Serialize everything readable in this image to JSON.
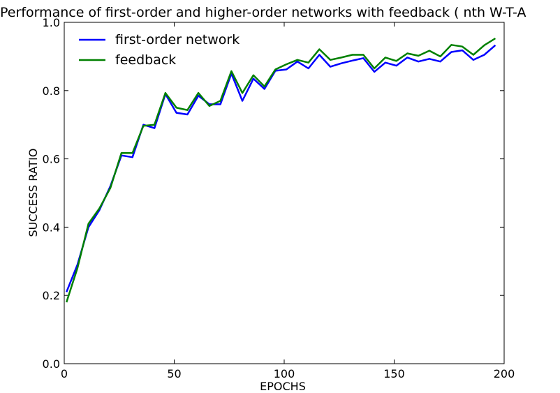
{
  "chart_data": {
    "type": "line",
    "title": "Performance of first-order and higher-order networks with feedback ( nth W-T-A",
    "xlabel": "EPOCHS",
    "ylabel": "SUCCESS RATIO",
    "xlim": [
      0,
      200
    ],
    "ylim": [
      0,
      1.0
    ],
    "xticks": [
      0,
      50,
      100,
      150,
      200
    ],
    "yticks": [
      0.0,
      0.2,
      0.4,
      0.6,
      0.8,
      1.0
    ],
    "xtick_labels": [
      "0",
      "50",
      "100",
      "150",
      "200"
    ],
    "ytick_labels": [
      "0.0",
      "0.2",
      "0.4",
      "0.6",
      "0.8",
      "1.0"
    ],
    "grid": false,
    "legend_position": "upper-left",
    "x": [
      1,
      6,
      11,
      16,
      21,
      26,
      31,
      36,
      41,
      46,
      51,
      56,
      61,
      66,
      71,
      76,
      81,
      86,
      91,
      96,
      101,
      106,
      111,
      116,
      121,
      126,
      131,
      136,
      141,
      146,
      151,
      156,
      161,
      166,
      171,
      176,
      181,
      186,
      191,
      196
    ],
    "series": [
      {
        "name": "first-order network",
        "color": "#0000ff",
        "values": [
          0.21,
          0.29,
          0.4,
          0.45,
          0.52,
          0.61,
          0.605,
          0.7,
          0.69,
          0.79,
          0.735,
          0.73,
          0.785,
          0.76,
          0.76,
          0.85,
          0.77,
          0.835,
          0.805,
          0.858,
          0.862,
          0.885,
          0.865,
          0.905,
          0.87,
          0.88,
          0.888,
          0.895,
          0.855,
          0.882,
          0.873,
          0.897,
          0.885,
          0.893,
          0.885,
          0.913,
          0.918,
          0.89,
          0.905,
          0.933
        ]
      },
      {
        "name": "feedback",
        "color": "#008000",
        "values": [
          0.18,
          0.28,
          0.41,
          0.455,
          0.515,
          0.617,
          0.617,
          0.697,
          0.7,
          0.793,
          0.75,
          0.743,
          0.793,
          0.755,
          0.77,
          0.857,
          0.793,
          0.845,
          0.812,
          0.862,
          0.877,
          0.89,
          0.882,
          0.921,
          0.89,
          0.897,
          0.905,
          0.905,
          0.865,
          0.897,
          0.887,
          0.909,
          0.902,
          0.917,
          0.9,
          0.934,
          0.929,
          0.905,
          0.933,
          0.953
        ]
      }
    ]
  }
}
